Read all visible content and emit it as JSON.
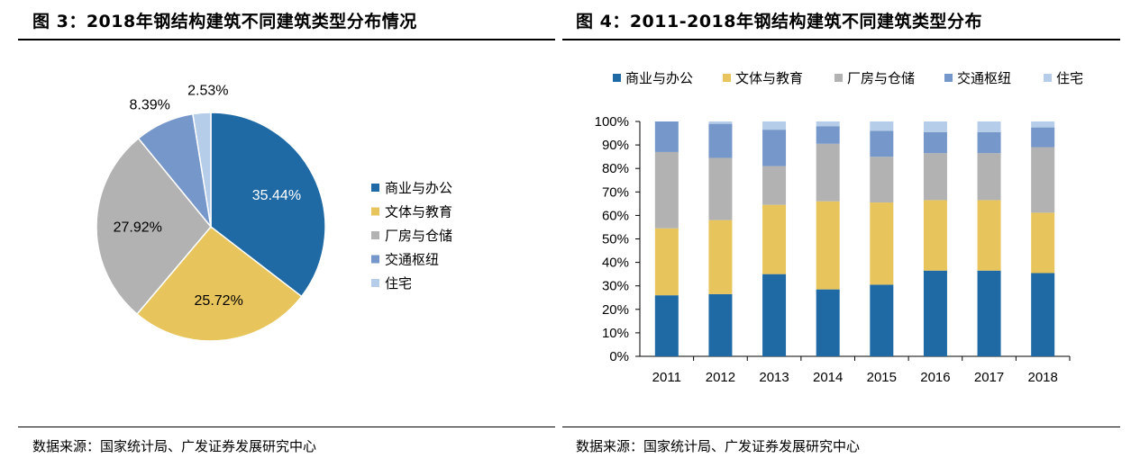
{
  "left": {
    "title": "图 3：2018年钢结构建筑不同建筑类型分布情况",
    "source": "数据来源：国家统计局、广发证券发展研究中心"
  },
  "right": {
    "title": "图 4：2011-2018年钢结构建筑不同建筑类型分布",
    "source": "数据来源：国家统计局、广发证券发展研究中心"
  },
  "colors": {
    "商业与办公": "#1f6aa5",
    "文体与教育": "#e8c55c",
    "厂房与仓储": "#b2b2b2",
    "交通枢纽": "#7697c9",
    "住宅": "#b5cde8"
  },
  "chart_data": [
    {
      "type": "pie",
      "title": "",
      "legend_position": "right",
      "slices": [
        {
          "label": "商业与办公",
          "value": 35.44,
          "display": "35.44%"
        },
        {
          "label": "文体与教育",
          "value": 25.72,
          "display": "25.72%"
        },
        {
          "label": "厂房与仓储",
          "value": 27.92,
          "display": "27.92%"
        },
        {
          "label": "交通枢纽",
          "value": 8.39,
          "display": "8.39%"
        },
        {
          "label": "住宅",
          "value": 2.53,
          "display": "2.53%"
        }
      ]
    },
    {
      "type": "bar",
      "stacked": true,
      "percent": true,
      "title": "",
      "legend_position": "top",
      "categories": [
        "2011",
        "2012",
        "2013",
        "2014",
        "2015",
        "2016",
        "2017",
        "2018"
      ],
      "ylim": [
        0,
        100
      ],
      "yticks": [
        "0%",
        "10%",
        "20%",
        "30%",
        "40%",
        "50%",
        "60%",
        "70%",
        "80%",
        "90%",
        "100%"
      ],
      "grid": false,
      "series": [
        {
          "name": "商业与办公",
          "values": [
            26,
            26.5,
            35,
            28.5,
            30.5,
            36.5,
            36.5,
            35.44
          ]
        },
        {
          "name": "文体与教育",
          "values": [
            28.5,
            31.5,
            29.5,
            37.5,
            35,
            30,
            30,
            25.72
          ]
        },
        {
          "name": "厂房与仓储",
          "values": [
            32.5,
            26.5,
            16.5,
            24.5,
            19.5,
            20,
            20,
            27.92
          ]
        },
        {
          "name": "交通枢纽",
          "values": [
            13,
            14.5,
            15.5,
            7.5,
            11,
            9,
            9,
            8.39
          ]
        },
        {
          "name": "住宅",
          "values": [
            0,
            1,
            3.5,
            2,
            4,
            4.5,
            4.5,
            2.53
          ]
        }
      ]
    }
  ]
}
